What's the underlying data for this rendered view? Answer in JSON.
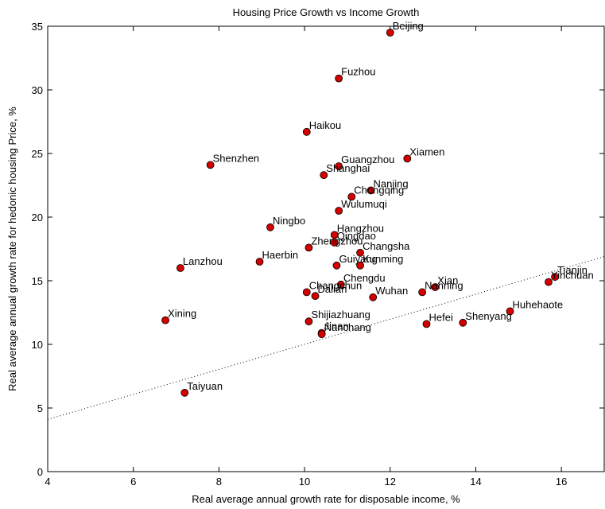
{
  "chart_data": {
    "type": "scatter",
    "title": "Housing Price Growth vs Income Growth",
    "xlabel": "Real average annual growth rate for disposable income, %",
    "ylabel": "Real average annual growth rate for hedonic housing Price, %",
    "xlim": [
      4,
      17
    ],
    "ylim": [
      0,
      35
    ],
    "xticks": [
      4,
      6,
      8,
      10,
      12,
      14,
      16
    ],
    "yticks": [
      0,
      5,
      10,
      15,
      20,
      25,
      30,
      35
    ],
    "grid": false,
    "marker_color": "#d40000",
    "trend_line": {
      "style": "dotted",
      "x": [
        4,
        17
      ],
      "y": [
        4.1,
        16.9
      ]
    },
    "points": [
      {
        "label": "Beijing",
        "x": 12.0,
        "y": 34.5
      },
      {
        "label": "Fuzhou",
        "x": 10.8,
        "y": 30.9
      },
      {
        "label": "Haikou",
        "x": 10.05,
        "y": 26.7
      },
      {
        "label": "Xiamen",
        "x": 12.4,
        "y": 24.6
      },
      {
        "label": "Shenzhen",
        "x": 7.8,
        "y": 24.1
      },
      {
        "label": "Guangzhou",
        "x": 10.8,
        "y": 24.0
      },
      {
        "label": "Shanghai",
        "x": 10.45,
        "y": 23.3
      },
      {
        "label": "Nanjing",
        "x": 11.55,
        "y": 22.1
      },
      {
        "label": "Chongqing",
        "x": 11.1,
        "y": 21.6
      },
      {
        "label": "Wulumuqi",
        "x": 10.8,
        "y": 20.5
      },
      {
        "label": "Ningbo",
        "x": 9.2,
        "y": 19.2
      },
      {
        "label": "Hangzhou",
        "x": 10.7,
        "y": 18.6
      },
      {
        "label": "Qingdao",
        "x": 10.7,
        "y": 18.0
      },
      {
        "label": "Zhengzhou",
        "x": 10.1,
        "y": 17.6
      },
      {
        "label": "Changsha",
        "x": 11.3,
        "y": 17.2
      },
      {
        "label": "Haerbin",
        "x": 8.95,
        "y": 16.5
      },
      {
        "label": "Guiyang",
        "x": 10.75,
        "y": 16.2
      },
      {
        "label": "Kunming",
        "x": 11.3,
        "y": 16.2
      },
      {
        "label": "Lanzhou",
        "x": 7.1,
        "y": 16.0
      },
      {
        "label": "Tianjin",
        "x": 15.85,
        "y": 15.3
      },
      {
        "label": "Yinchuan",
        "x": 15.7,
        "y": 14.9
      },
      {
        "label": "Chengdu",
        "x": 10.85,
        "y": 14.7
      },
      {
        "label": "Xian",
        "x": 13.05,
        "y": 14.5
      },
      {
        "label": "Nanning",
        "x": 12.75,
        "y": 14.1
      },
      {
        "label": "Changchun",
        "x": 10.05,
        "y": 14.1
      },
      {
        "label": "Dalian",
        "x": 10.25,
        "y": 13.8
      },
      {
        "label": "Wuhan",
        "x": 11.6,
        "y": 13.7
      },
      {
        "label": "Huhehaote",
        "x": 14.8,
        "y": 12.6
      },
      {
        "label": "Xining",
        "x": 6.75,
        "y": 11.9
      },
      {
        "label": "Shijiazhuang",
        "x": 10.1,
        "y": 11.8
      },
      {
        "label": "Shenyang",
        "x": 13.7,
        "y": 11.7
      },
      {
        "label": "Hefei",
        "x": 12.85,
        "y": 11.6
      },
      {
        "label": "Jinan",
        "x": 10.4,
        "y": 10.9
      },
      {
        "label": "Nanchang",
        "x": 10.4,
        "y": 10.8
      },
      {
        "label": "Taiyuan",
        "x": 7.2,
        "y": 6.2
      }
    ]
  }
}
